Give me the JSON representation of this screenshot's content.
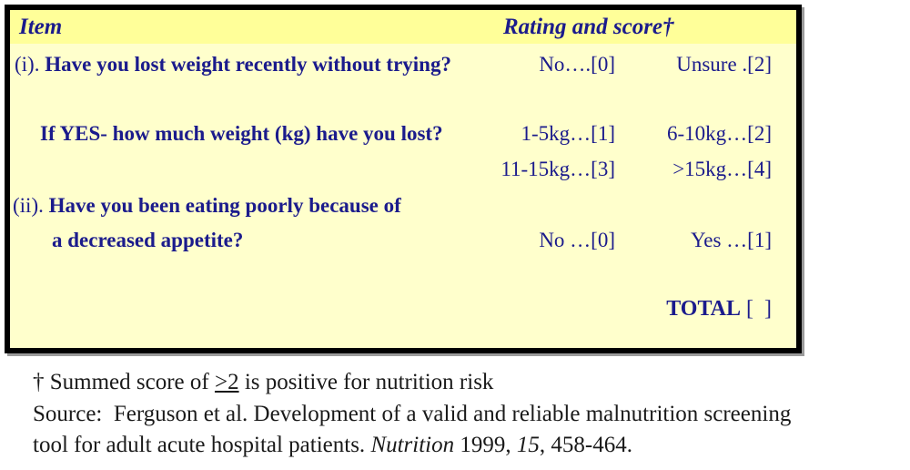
{
  "colors": {
    "header_bg": "#ffff99",
    "body_bg": "#ffffcc",
    "text_navy": "#1b1b8c",
    "border_color": "#000000",
    "footnote_text": "#1a1a1a"
  },
  "table": {
    "header": {
      "item": "Item",
      "rating": "Rating and score†"
    },
    "rows": [
      {
        "prefix": "(i).",
        "question": " Have you lost weight recently without trying?",
        "r1": "No….[0]",
        "r2": "Unsure .[2]"
      },
      {
        "prefix": "",
        "question": "If YES- how much weight (kg) have you lost?",
        "r1": "1-5kg…[1]",
        "r2": "6-10kg…[2]"
      },
      {
        "prefix": "",
        "question": "",
        "r1": "11-15kg…[3]",
        "r2": ">15kg…[4]"
      },
      {
        "prefix": "(ii).",
        "question": " Have you been eating poorly because of",
        "r1": "",
        "r2": ""
      },
      {
        "prefix": "",
        "question": "a decreased appetite?",
        "r1": "No …[0]",
        "r2": "Yes …[1]"
      }
    ],
    "total": {
      "label": "TOTAL",
      "box": " [  ]"
    }
  },
  "footnotes": {
    "dagger": {
      "pre": "† Summed score of ",
      "threshold": ">2",
      "post": " is positive for nutrition risk"
    },
    "source_line1": "Source:  Ferguson et al. Development of a valid and reliable malnutrition screening",
    "source_line2": {
      "pre": "tool for adult acute hospital patients. ",
      "journal": "Nutrition",
      "mid": " 1999, ",
      "volume": "15",
      "post": ", 458-464."
    }
  }
}
